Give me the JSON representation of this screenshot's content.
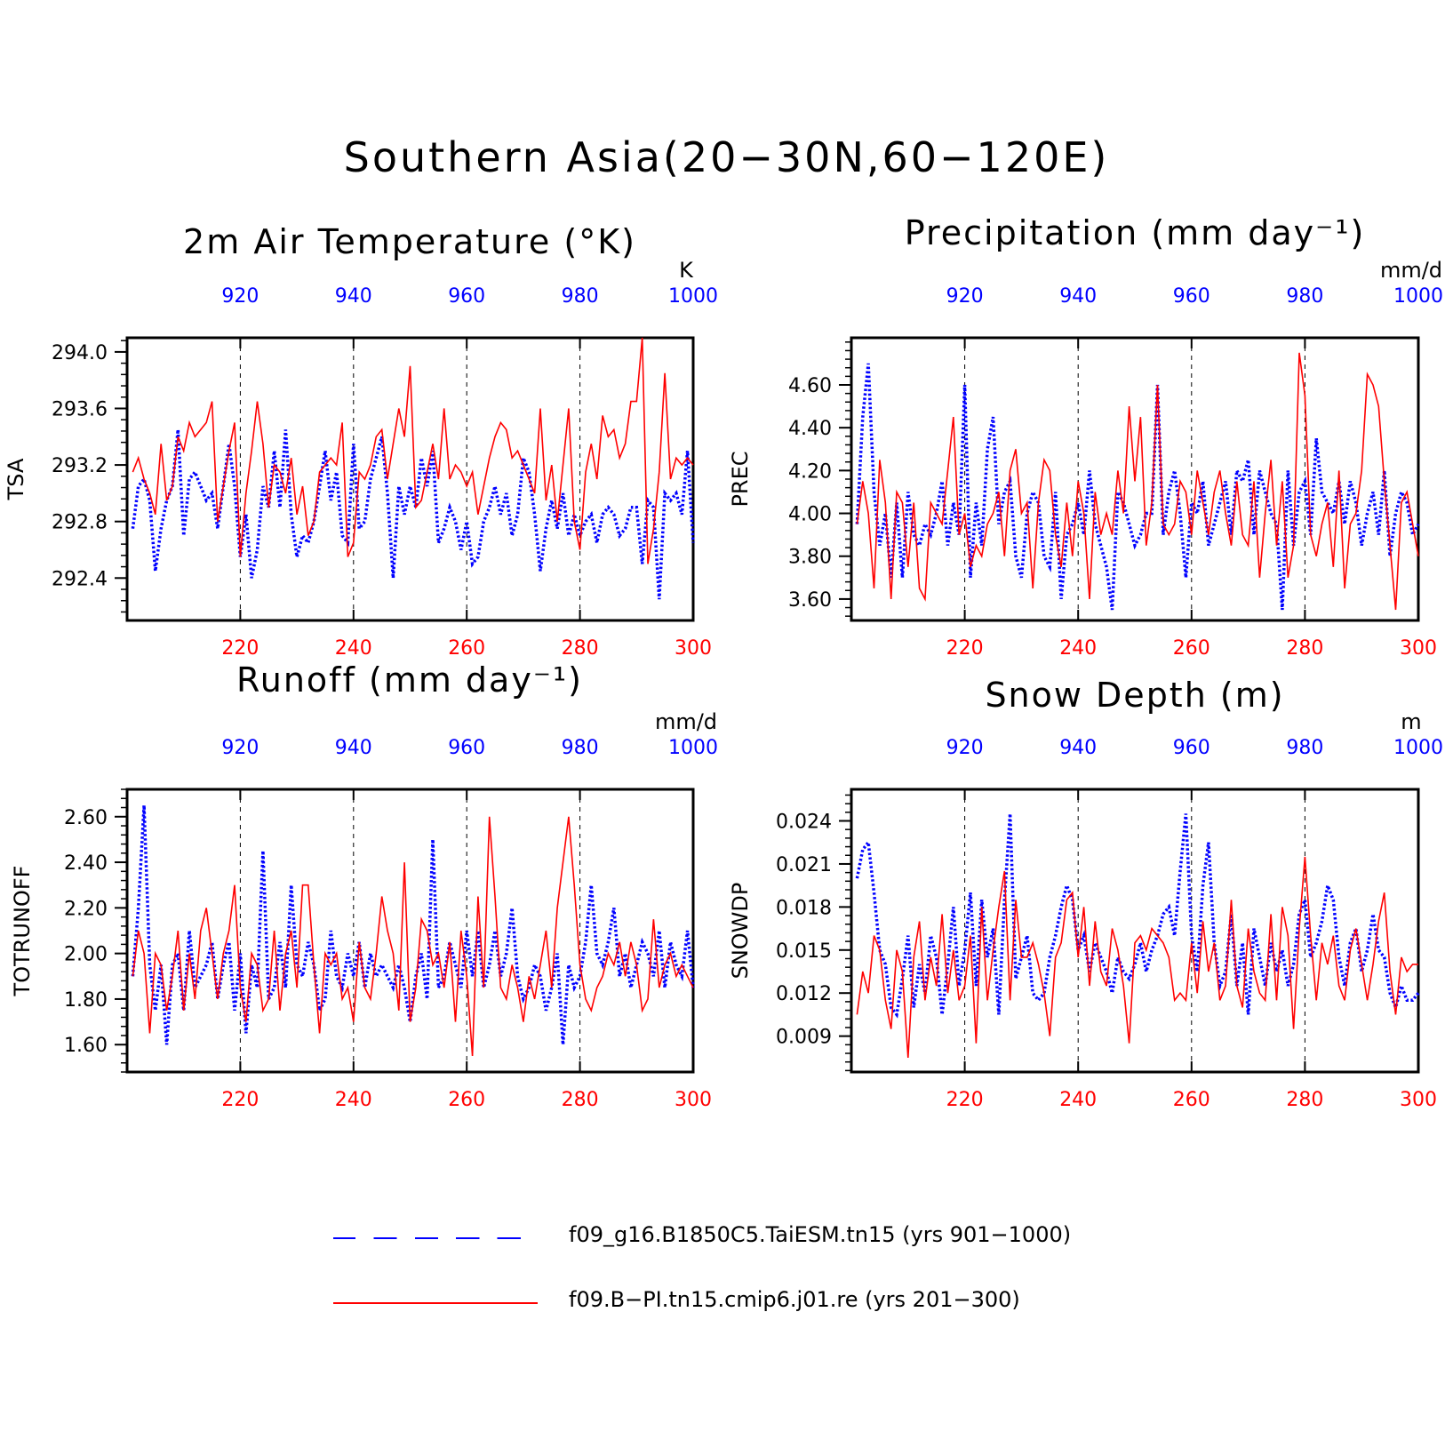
{
  "title": "Southern Asia(20−30N,60−120E)",
  "legend": [
    {
      "label": "f09_g16.B1850C5.TaiESM.tn15 (yrs 901−1000)",
      "color": "#0000ff",
      "style": "dashed"
    },
    {
      "label": "f09.B−PI.tn15.cmip6.j01.re (yrs 201−300)",
      "color": "#ff0000",
      "style": "solid"
    }
  ],
  "chart_data": [
    {
      "type": "line",
      "title": "2m Air Temperature (°K)",
      "ylabel": "TSA",
      "units": "K",
      "ylim": [
        292.1,
        294.1
      ],
      "yticks": [
        "292.4",
        "292.8",
        "293.2",
        "293.6",
        "294.0"
      ],
      "x_bottom_ticks": [
        "220",
        "240",
        "260",
        "280",
        "300"
      ],
      "x_top_ticks": [
        "920",
        "940",
        "960",
        "980",
        "1000"
      ],
      "x_bottom_range": [
        201,
        300
      ],
      "x_top_range": [
        901,
        1000
      ],
      "series": [
        {
          "name": "f09_g16.B1850C5.TaiESM.tn15 (yrs 901−1000)",
          "color": "#0000ff",
          "style": "dotted",
          "values": [
            292.75,
            293.05,
            293.1,
            292.95,
            292.45,
            292.75,
            292.95,
            293.05,
            293.45,
            292.7,
            293.1,
            293.15,
            293.05,
            292.95,
            293.0,
            292.75,
            293.05,
            293.35,
            293.05,
            292.55,
            292.85,
            292.4,
            292.6,
            293.05,
            292.9,
            293.3,
            292.9,
            293.45,
            292.85,
            292.55,
            292.7,
            292.65,
            292.8,
            293.05,
            293.3,
            292.95,
            293.15,
            292.7,
            292.65,
            293.35,
            292.75,
            292.8,
            293.1,
            293.25,
            293.4,
            293.0,
            292.4,
            293.05,
            292.85,
            293.05,
            292.9,
            293.25,
            293.05,
            293.3,
            292.65,
            292.75,
            292.9,
            292.8,
            292.6,
            292.8,
            292.5,
            292.55,
            292.8,
            292.9,
            293.05,
            292.85,
            293.0,
            292.7,
            292.85,
            293.25,
            293.15,
            292.85,
            292.45,
            292.75,
            292.95,
            292.75,
            293.0,
            292.7,
            292.85,
            292.7,
            292.8,
            292.85,
            292.65,
            292.85,
            292.9,
            292.85,
            292.7,
            292.75,
            292.9,
            292.9,
            292.5,
            292.95,
            292.9,
            292.25,
            293.0,
            292.95,
            293.0,
            292.85,
            293.3,
            292.65
          ]
        },
        {
          "name": "f09.B−PI.tn15.cmip6.j01.re (yrs 201−300)",
          "color": "#ff0000",
          "style": "solid",
          "values": [
            293.15,
            293.25,
            293.1,
            293.0,
            292.85,
            293.35,
            292.95,
            293.05,
            293.4,
            293.3,
            293.5,
            293.4,
            293.45,
            293.5,
            293.65,
            292.8,
            293.05,
            293.3,
            293.5,
            292.55,
            293.0,
            293.3,
            293.65,
            293.35,
            292.9,
            293.2,
            293.15,
            293.0,
            293.25,
            292.85,
            293.05,
            292.7,
            292.8,
            293.15,
            293.2,
            293.25,
            293.2,
            293.5,
            292.55,
            292.65,
            293.15,
            293.1,
            293.2,
            293.4,
            293.45,
            293.1,
            293.35,
            293.6,
            293.4,
            293.9,
            292.9,
            292.95,
            293.15,
            293.35,
            293.1,
            293.6,
            293.1,
            293.2,
            293.15,
            293.05,
            293.15,
            292.85,
            293.05,
            293.25,
            293.4,
            293.5,
            293.45,
            293.25,
            293.3,
            293.2,
            293.1,
            293.0,
            293.6,
            292.95,
            293.2,
            292.8,
            293.2,
            293.6,
            292.8,
            292.6,
            293.15,
            293.35,
            293.1,
            293.55,
            293.4,
            293.45,
            293.25,
            293.35,
            293.65,
            293.65,
            294.1,
            292.5,
            292.75,
            293.15,
            293.85,
            293.1,
            293.25,
            293.2,
            293.25,
            293.2
          ]
        }
      ]
    },
    {
      "type": "line",
      "title": "Precipitation (mm day⁻¹)",
      "ylabel": "PREC",
      "units": "mm/d",
      "ylim": [
        3.5,
        4.82
      ],
      "yticks": [
        "3.60",
        "3.80",
        "4.00",
        "4.20",
        "4.40",
        "4.60"
      ],
      "x_bottom_ticks": [
        "220",
        "240",
        "260",
        "280",
        "300"
      ],
      "x_top_ticks": [
        "920",
        "940",
        "960",
        "980",
        "1000"
      ],
      "x_bottom_range": [
        201,
        300
      ],
      "x_top_range": [
        901,
        1000
      ],
      "series": [
        {
          "name": "f09_g16.B1850C5.TaiESM.tn15 (yrs 901−1000)",
          "color": "#0000ff",
          "style": "dotted",
          "values": [
            3.95,
            4.45,
            4.7,
            4.1,
            3.85,
            4.0,
            3.7,
            4.05,
            3.7,
            4.1,
            3.9,
            3.85,
            3.95,
            3.9,
            4.0,
            4.15,
            3.85,
            4.05,
            3.9,
            4.6,
            3.7,
            4.05,
            3.85,
            4.3,
            4.45,
            3.95,
            4.1,
            4.15,
            3.8,
            3.7,
            4.0,
            4.1,
            4.05,
            3.8,
            3.75,
            4.1,
            3.6,
            3.9,
            3.95,
            4.05,
            3.9,
            4.2,
            3.95,
            3.85,
            3.75,
            3.55,
            4.1,
            4.05,
            3.95,
            3.85,
            3.9,
            4.0,
            4.0,
            4.6,
            3.9,
            4.1,
            4.2,
            4.0,
            3.7,
            4.05,
            4.0,
            4.15,
            3.85,
            3.95,
            4.05,
            4.15,
            3.9,
            4.2,
            4.15,
            4.25,
            3.9,
            4.2,
            4.1,
            4.0,
            3.95,
            3.55,
            4.2,
            3.85,
            4.1,
            4.15,
            3.9,
            4.35,
            4.1,
            4.05,
            4.0,
            4.15,
            3.95,
            4.15,
            4.05,
            3.85,
            4.0,
            4.1,
            3.9,
            4.2,
            3.8,
            4.0,
            4.1,
            4.05,
            3.9,
            3.95
          ]
        },
        {
          "name": "f09.B−PI.tn15.cmip6.j01.re (yrs 201−300)",
          "color": "#ff0000",
          "style": "solid",
          "values": [
            3.95,
            4.15,
            4.0,
            3.65,
            4.25,
            4.05,
            3.6,
            4.1,
            4.05,
            3.75,
            4.05,
            3.65,
            3.6,
            4.05,
            4.0,
            3.95,
            4.2,
            4.45,
            3.9,
            4.0,
            3.75,
            3.85,
            3.8,
            3.95,
            4.0,
            4.1,
            3.8,
            4.2,
            4.3,
            4.0,
            4.05,
            3.65,
            4.05,
            4.25,
            4.2,
            3.9,
            3.75,
            4.05,
            3.8,
            4.15,
            4.0,
            3.6,
            4.1,
            3.9,
            4.0,
            3.9,
            4.2,
            4.0,
            4.5,
            4.15,
            4.45,
            3.85,
            4.05,
            4.6,
            3.95,
            3.9,
            3.95,
            4.15,
            4.1,
            3.9,
            4.2,
            4.05,
            3.9,
            4.1,
            4.2,
            4.0,
            3.85,
            4.15,
            3.9,
            3.85,
            4.15,
            3.7,
            4.0,
            4.25,
            3.85,
            4.15,
            3.7,
            3.85,
            4.75,
            4.55,
            3.9,
            3.8,
            3.95,
            4.05,
            3.75,
            4.2,
            3.65,
            3.95,
            4.0,
            4.2,
            4.65,
            4.6,
            4.5,
            4.15,
            3.85,
            3.55,
            4.05,
            4.1,
            3.95,
            3.8
          ]
        }
      ]
    },
    {
      "type": "line",
      "title": "Runoff (mm day⁻¹)",
      "ylabel": "TOTRUNOFF",
      "units": "mm/d",
      "ylim": [
        1.48,
        2.72
      ],
      "yticks": [
        "1.60",
        "1.80",
        "2.00",
        "2.20",
        "2.40",
        "2.60"
      ],
      "x_bottom_ticks": [
        "220",
        "240",
        "260",
        "280",
        "300"
      ],
      "x_top_ticks": [
        "920",
        "940",
        "960",
        "980",
        "1000"
      ],
      "x_bottom_range": [
        201,
        300
      ],
      "x_top_range": [
        901,
        1000
      ],
      "series": [
        {
          "name": "f09_g16.B1850C5.TaiESM.tn15 (yrs 901−1000)",
          "color": "#0000ff",
          "style": "dotted",
          "values": [
            1.9,
            2.2,
            2.65,
            1.95,
            1.75,
            1.95,
            1.6,
            1.95,
            2.0,
            1.75,
            2.1,
            1.85,
            1.9,
            1.95,
            2.05,
            1.8,
            1.95,
            2.05,
            1.75,
            2.0,
            1.65,
            1.95,
            1.85,
            2.45,
            1.8,
            1.85,
            2.05,
            1.85,
            2.3,
            1.95,
            1.9,
            2.05,
            1.95,
            1.75,
            1.8,
            2.1,
            1.9,
            1.85,
            2.0,
            1.9,
            2.05,
            1.85,
            2.0,
            1.9,
            1.95,
            1.9,
            1.85,
            1.95,
            1.85,
            1.7,
            1.9,
            2.0,
            1.8,
            2.5,
            1.85,
            1.9,
            2.05,
            1.95,
            1.85,
            2.1,
            1.9,
            2.1,
            1.85,
            1.95,
            2.1,
            1.9,
            2.0,
            2.2,
            1.9,
            1.8,
            1.85,
            1.95,
            1.9,
            1.75,
            1.85,
            2.0,
            1.6,
            1.95,
            1.85,
            1.9,
            2.05,
            2.3,
            2.0,
            1.95,
            2.05,
            2.2,
            1.9,
            2.0,
            1.85,
            1.95,
            2.05,
            2.0,
            1.9,
            2.1,
            1.85,
            2.05,
            1.95,
            1.9,
            2.1,
            1.85
          ]
        },
        {
          "name": "f09.B−PI.tn15.cmip6.j01.re (yrs 201−300)",
          "color": "#ff0000",
          "style": "solid",
          "values": [
            1.9,
            2.1,
            2.0,
            1.65,
            2.0,
            1.95,
            1.75,
            1.9,
            2.1,
            1.75,
            2.0,
            1.8,
            2.1,
            2.2,
            2.0,
            1.8,
            2.0,
            2.1,
            2.3,
            1.85,
            1.7,
            2.0,
            1.95,
            1.75,
            1.8,
            2.1,
            1.75,
            2.0,
            2.1,
            1.85,
            2.3,
            2.3,
            1.95,
            1.65,
            2.0,
            1.95,
            2.0,
            1.8,
            1.85,
            1.7,
            2.05,
            1.85,
            1.8,
            2.0,
            2.25,
            2.1,
            2.0,
            1.75,
            2.4,
            1.7,
            1.85,
            2.15,
            2.1,
            1.95,
            2.0,
            1.85,
            2.05,
            1.7,
            2.1,
            1.9,
            1.55,
            2.25,
            1.85,
            2.6,
            2.25,
            1.85,
            1.8,
            1.95,
            1.85,
            1.7,
            1.9,
            1.8,
            1.95,
            2.1,
            1.85,
            2.2,
            2.4,
            2.6,
            2.3,
            1.95,
            1.8,
            1.75,
            1.85,
            1.9,
            2.0,
            1.95,
            2.05,
            1.9,
            2.05,
            1.95,
            1.75,
            1.8,
            2.15,
            1.85,
            1.95,
            2.0,
            1.9,
            1.95,
            1.9,
            1.85
          ]
        }
      ]
    },
    {
      "type": "line",
      "title": "Snow Depth (m)",
      "ylabel": "SNOWDP",
      "units": "m",
      "ylim": [
        0.0065,
        0.0262
      ],
      "yticks": [
        "0.009",
        "0.012",
        "0.015",
        "0.018",
        "0.021",
        "0.024"
      ],
      "x_bottom_ticks": [
        "220",
        "240",
        "260",
        "280",
        "300"
      ],
      "x_top_ticks": [
        "920",
        "940",
        "960",
        "980",
        "1000"
      ],
      "x_bottom_range": [
        201,
        300
      ],
      "x_top_range": [
        901,
        1000
      ],
      "series": [
        {
          "name": "f09_g16.B1850C5.TaiESM.tn15 (yrs 901−1000)",
          "color": "#0000ff",
          "style": "dotted",
          "values": [
            0.02,
            0.022,
            0.0225,
            0.019,
            0.015,
            0.014,
            0.011,
            0.0105,
            0.013,
            0.016,
            0.011,
            0.014,
            0.012,
            0.016,
            0.0145,
            0.0105,
            0.014,
            0.018,
            0.0125,
            0.015,
            0.019,
            0.0125,
            0.0185,
            0.0145,
            0.0165,
            0.0105,
            0.0185,
            0.0245,
            0.013,
            0.0145,
            0.016,
            0.012,
            0.0115,
            0.012,
            0.0145,
            0.016,
            0.018,
            0.0195,
            0.0185,
            0.015,
            0.016,
            0.0135,
            0.0155,
            0.0145,
            0.0135,
            0.012,
            0.0145,
            0.0135,
            0.013,
            0.014,
            0.0155,
            0.0135,
            0.015,
            0.016,
            0.0175,
            0.018,
            0.016,
            0.0205,
            0.0245,
            0.016,
            0.0135,
            0.0195,
            0.0225,
            0.0155,
            0.0125,
            0.0135,
            0.0175,
            0.0125,
            0.0155,
            0.0105,
            0.0165,
            0.0145,
            0.0125,
            0.0155,
            0.0135,
            0.015,
            0.0125,
            0.014,
            0.0175,
            0.0185,
            0.0145,
            0.0155,
            0.017,
            0.0195,
            0.0185,
            0.0145,
            0.0125,
            0.0155,
            0.0165,
            0.0135,
            0.015,
            0.0175,
            0.015,
            0.0145,
            0.012,
            0.011,
            0.0125,
            0.0115,
            0.0115,
            0.012
          ]
        },
        {
          "name": "f09.B−PI.tn15.cmip6.j01.re (yrs 201−300)",
          "color": "#ff0000",
          "style": "solid",
          "values": [
            0.0105,
            0.0135,
            0.012,
            0.016,
            0.015,
            0.0115,
            0.0095,
            0.015,
            0.0135,
            0.0075,
            0.0145,
            0.017,
            0.0115,
            0.0145,
            0.0125,
            0.0175,
            0.012,
            0.015,
            0.0115,
            0.0125,
            0.016,
            0.0085,
            0.018,
            0.0115,
            0.015,
            0.018,
            0.0205,
            0.0115,
            0.0185,
            0.0145,
            0.0145,
            0.0155,
            0.014,
            0.012,
            0.009,
            0.0145,
            0.0155,
            0.0185,
            0.019,
            0.0145,
            0.018,
            0.0125,
            0.017,
            0.0135,
            0.0125,
            0.0165,
            0.015,
            0.0125,
            0.0085,
            0.0155,
            0.016,
            0.015,
            0.0165,
            0.016,
            0.0155,
            0.0145,
            0.0115,
            0.012,
            0.0115,
            0.0155,
            0.012,
            0.017,
            0.0135,
            0.0155,
            0.0115,
            0.0125,
            0.0185,
            0.0125,
            0.011,
            0.0165,
            0.0135,
            0.012,
            0.0115,
            0.0175,
            0.0115,
            0.018,
            0.016,
            0.0095,
            0.0165,
            0.0215,
            0.016,
            0.0115,
            0.0155,
            0.014,
            0.016,
            0.0125,
            0.0115,
            0.015,
            0.0165,
            0.014,
            0.0115,
            0.014,
            0.017,
            0.019,
            0.0135,
            0.0105,
            0.0145,
            0.0135,
            0.014,
            0.014
          ]
        }
      ]
    }
  ]
}
